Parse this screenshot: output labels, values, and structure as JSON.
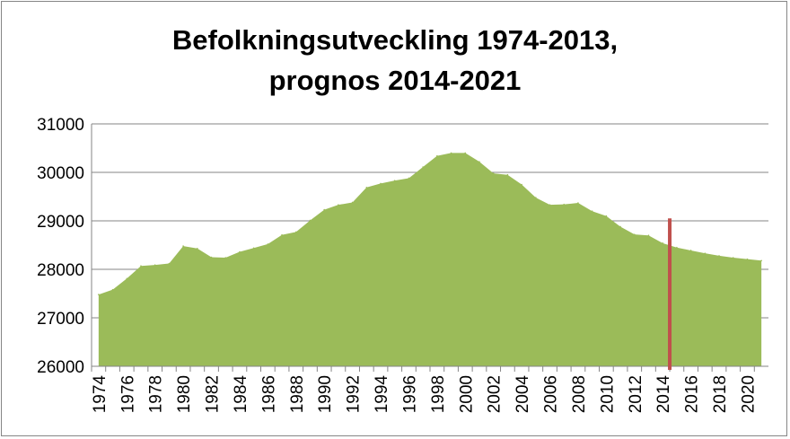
{
  "chart_data": {
    "type": "area",
    "title": "Befolkningsutveckling 1974-2013,\nprognos 2014-2021",
    "xlabel": "",
    "ylabel": "",
    "ylim": [
      26000,
      31000
    ],
    "yticks": [
      "26000",
      "27000",
      "28000",
      "29000",
      "30000",
      "31000"
    ],
    "xticks": [
      "1974",
      "1976",
      "1978",
      "1980",
      "1982",
      "1984",
      "1986",
      "1988",
      "1990",
      "1992",
      "1994",
      "1996",
      "1998",
      "2000",
      "2002",
      "2004",
      "2006",
      "2008",
      "2010",
      "2012",
      "2014",
      "2016",
      "2018",
      "2020"
    ],
    "grid": "horizontal",
    "legend": "none",
    "fill_color": "#9bbb59",
    "marker": {
      "x": 2014.5,
      "color": "#c0504d"
    },
    "x": [
      1974,
      1975,
      1976,
      1977,
      1978,
      1979,
      1980,
      1981,
      1982,
      1983,
      1984,
      1985,
      1986,
      1987,
      1988,
      1989,
      1990,
      1991,
      1992,
      1993,
      1994,
      1995,
      1996,
      1997,
      1998,
      1999,
      2000,
      2001,
      2002,
      2003,
      2004,
      2005,
      2006,
      2007,
      2008,
      2009,
      2010,
      2011,
      2012,
      2013,
      2014,
      2015,
      2016,
      2017,
      2018,
      2019,
      2020,
      2021
    ],
    "values": [
      27480,
      27580,
      27810,
      28070,
      28090,
      28120,
      28480,
      28430,
      28250,
      28240,
      28360,
      28440,
      28520,
      28710,
      28770,
      29010,
      29230,
      29330,
      29380,
      29690,
      29770,
      29830,
      29880,
      30110,
      30340,
      30400,
      30400,
      30220,
      29980,
      29950,
      29750,
      29480,
      29330,
      29340,
      29370,
      29200,
      29100,
      28880,
      28720,
      28700,
      28540,
      28450,
      28390,
      28330,
      28280,
      28240,
      28210,
      28180
    ]
  }
}
